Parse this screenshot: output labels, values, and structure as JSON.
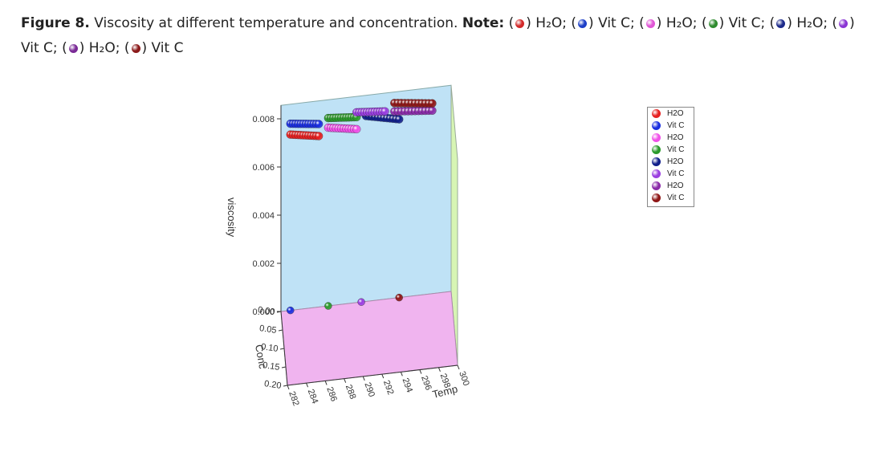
{
  "caption": {
    "prefix": "Figure 8.",
    "text": " Viscosity at different temperature and concentration. ",
    "note_label": "Note:",
    "items": [
      {
        "label": "H₂O",
        "color": "#d32a2a"
      },
      {
        "label": "Vit C",
        "color": "#1d3fc7"
      },
      {
        "label": "H₂O",
        "color": "#e056d6"
      },
      {
        "label": "Vit C",
        "color": "#2e8b2e"
      },
      {
        "label": "H₂O",
        "color": "#1c2a8a"
      },
      {
        "label": "Vit C",
        "color": "#8a35d4"
      },
      {
        "label": "H₂O",
        "color": "#7a2a96"
      },
      {
        "label": "Vit C",
        "color": "#8b1a1a"
      }
    ]
  },
  "chart_data": {
    "type": "scatter",
    "xlabel": "Temp",
    "ylabel": "Conc",
    "zlabel": "viscosity",
    "xlim": [
      282,
      300
    ],
    "ylim": [
      0,
      0.2
    ],
    "zlim": [
      0,
      0.008
    ],
    "x_ticks": [
      "282",
      "284",
      "286",
      "288",
      "290",
      "292",
      "294",
      "296",
      "298",
      "300"
    ],
    "y_ticks": [
      "0.00",
      "0.05",
      "0.10",
      "0.15",
      "0.20"
    ],
    "z_ticks": [
      "0.000",
      "0.002",
      "0.004",
      "0.006",
      "0.008"
    ],
    "legend": {
      "position": "right",
      "entries": [
        {
          "name": "H2O",
          "color": "#e62020"
        },
        {
          "name": "Vit C",
          "color": "#1a2ee0"
        },
        {
          "name": "H2O",
          "color": "#f050e8"
        },
        {
          "name": "Vit C",
          "color": "#2a9a2a"
        },
        {
          "name": "H2O",
          "color": "#101e8a"
        },
        {
          "name": "Vit C",
          "color": "#9a3ee0"
        },
        {
          "name": "H2O",
          "color": "#8a2aa8"
        },
        {
          "name": "Vit C",
          "color": "#8e1616"
        }
      ]
    },
    "series": [
      {
        "name": "H2O",
        "color": "#e62020",
        "conc": 0.0,
        "temp_start": 283.0,
        "temp_end": 286.0,
        "visc_start": 0.0073,
        "visc_end": 0.0071,
        "count": 12
      },
      {
        "name": "Vit C",
        "color": "#1a2ee0",
        "conc": 0.0,
        "temp_start": 283.0,
        "temp_end": 286.0,
        "visc_start": 0.00775,
        "visc_end": 0.0076,
        "count": 12
      },
      {
        "name": "H2O",
        "color": "#f050e8",
        "conc": 0.0,
        "temp_start": 287.0,
        "temp_end": 290.0,
        "visc_start": 0.0074,
        "visc_end": 0.0072,
        "count": 12
      },
      {
        "name": "Vit C",
        "color": "#2a9a2a",
        "conc": 0.0,
        "temp_start": 287.0,
        "temp_end": 290.0,
        "visc_start": 0.0078,
        "visc_end": 0.0077,
        "count": 12
      },
      {
        "name": "H2O",
        "color": "#101e8a",
        "conc": 0.0,
        "temp_start": 291.0,
        "temp_end": 294.5,
        "visc_start": 0.0077,
        "visc_end": 0.0074,
        "count": 12
      },
      {
        "name": "Vit C",
        "color": "#9a3ee0",
        "conc": 0.0,
        "temp_start": 290.0,
        "temp_end": 293.0,
        "visc_start": 0.0079,
        "visc_end": 0.0078,
        "count": 12
      },
      {
        "name": "H2O",
        "color": "#8a2aa8",
        "conc": 0.0,
        "temp_start": 294.0,
        "temp_end": 298.0,
        "visc_start": 0.00775,
        "visc_end": 0.0076,
        "count": 12
      },
      {
        "name": "Vit C",
        "color": "#8e1616",
        "conc": 0.0,
        "temp_start": 294.0,
        "temp_end": 298.0,
        "visc_start": 0.0081,
        "visc_end": 0.0079,
        "count": 12
      }
    ],
    "floor_points": [
      {
        "color": "#1a2ee0",
        "temp": 283.0,
        "conc": 0.0,
        "visc": 0.0
      },
      {
        "color": "#2a9a2a",
        "temp": 287.0,
        "conc": 0.0,
        "visc": 0.0
      },
      {
        "color": "#9a3ee0",
        "temp": 290.5,
        "conc": 0.0,
        "visc": 0.0
      },
      {
        "color": "#8e1616",
        "temp": 294.5,
        "conc": 0.0,
        "visc": 0.0
      }
    ],
    "panel_colors": {
      "back": "#bfe2f6",
      "side": "#d7f5b4",
      "floor": "#f0b4ef"
    }
  }
}
